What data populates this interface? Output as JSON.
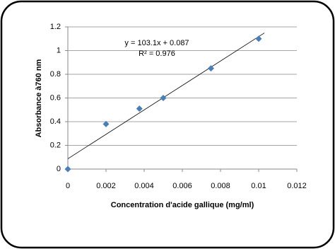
{
  "chart_data": {
    "type": "scatter",
    "x_label": "Concentration d'acide gallique (mg/ml)",
    "y_label": "Absorbance à760 nm",
    "series": [
      {
        "color": "#4a7ebb",
        "x": [
          0,
          0.002,
          0.00375,
          0.005,
          0.0075,
          0.01
        ],
        "values": [
          0,
          0.38,
          0.51,
          0.6,
          0.85,
          1.1
        ]
      }
    ],
    "trendline": {
      "slope": 103.1,
      "intercept": 0.087,
      "equation": "y = 103.1x + 0.087",
      "r_squared": "R² = 0.976"
    },
    "xlim": [
      0,
      0.012
    ],
    "xticks": [
      0,
      0.002,
      0.004,
      0.006,
      0.008,
      0.01,
      0.012
    ],
    "ylim": [
      0,
      1.2
    ],
    "yticks": [
      0,
      0.2,
      0.4,
      0.6,
      0.8,
      1,
      1.2
    ],
    "grid": true
  }
}
